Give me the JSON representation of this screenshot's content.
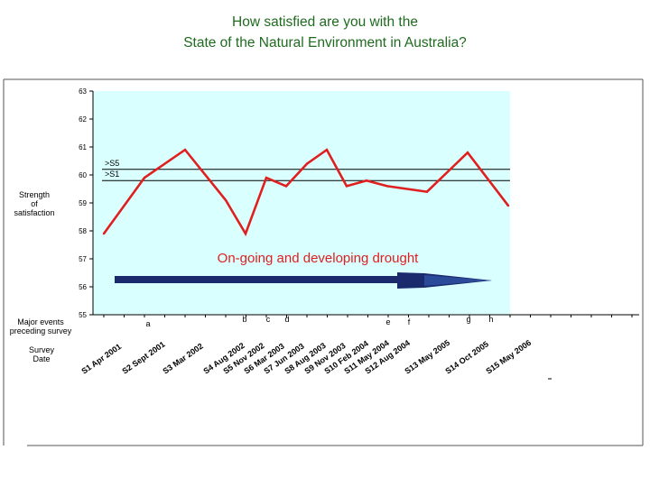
{
  "title_line1": "How satisfied are you with the",
  "title_line2": "State of the Natural Environment in Australia?",
  "labels": {
    "strength": [
      "Strength",
      "of",
      "satisfaction"
    ],
    "major_events": [
      "Major events",
      "preceding survey"
    ],
    "survey_date": [
      "Survey",
      "Date"
    ]
  },
  "chart_data": {
    "type": "line",
    "title": "How satisfied are you with the State of the Natural Environment in Australia?",
    "xlabel": "Survey Date",
    "ylabel": "Strength of satisfaction",
    "ylim": [
      55,
      63
    ],
    "yticks": [
      "55",
      "56",
      "57",
      "58",
      "59",
      "60",
      "61",
      "62",
      "63"
    ],
    "categories": [
      "S1 Apr 2001",
      "S2 Sept 2001",
      "S3 Mar 2002",
      "S4 Aug 2002",
      "S5 Nov 2002",
      "S6 Mar 2003",
      "S7 Jun 2003",
      "S8 Aug 2003",
      "S9 Nov 2003",
      "S10 Feb 2004",
      "S11 May 2004",
      "S12 Aug 2004",
      "S13 May 2005",
      "S14 Oct 2005",
      "S15 May 2006"
    ],
    "series": [
      {
        "values": [
          57.9,
          59.9,
          60.9,
          59.1,
          57.9,
          59.9,
          59.6,
          60.4,
          60.9,
          59.6,
          59.8,
          59.6,
          59.4,
          60.8,
          58.9
        ],
        "color": "#e02020"
      }
    ],
    "reference_lines": [
      {
        "label": ">S5",
        "value": 60.2
      },
      {
        "label": ">S1",
        "value": 59.8
      }
    ],
    "event_markers": [
      {
        "label": "a",
        "category": "S2 Sept 2001"
      },
      {
        "label": "b",
        "category": "S5 Nov 2002"
      },
      {
        "label": "c",
        "category": "S6 Mar 2003"
      },
      {
        "label": "d",
        "category": "S7 Jun 2003"
      },
      {
        "label": "e",
        "category": "S12 Aug 2004"
      },
      {
        "label": "f",
        "category": "S12 Aug 2004"
      },
      {
        "label": "g",
        "category": "S14 Oct 2005"
      },
      {
        "label": "h",
        "category": "S15 May 2006"
      }
    ],
    "annotation": "On-going and developing drought",
    "plot_background": "#d9ffff",
    "annotation_color": "#e02020",
    "arrow_color": "#1a2a6c",
    "grid": false
  }
}
